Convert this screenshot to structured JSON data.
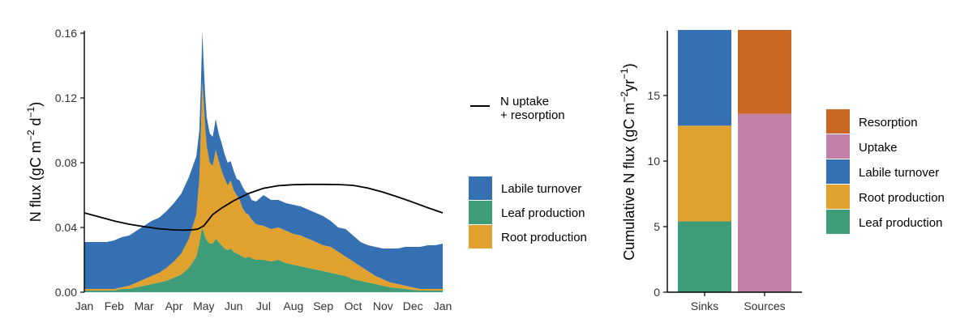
{
  "colors": {
    "labile": "#3571B2",
    "leaf": "#3F9C78",
    "root": "#E0A12F",
    "uptake": "#C27FA8",
    "resorption": "#C96722",
    "line": "#000000"
  },
  "chart_data": [
    {
      "type": "area",
      "stacked": true,
      "x_categories": [
        "Jan",
        "Feb",
        "Mar",
        "Apr",
        "May",
        "Jun",
        "Jul",
        "Aug",
        "Sep",
        "Oct",
        "Nov",
        "Dec",
        "Jan"
      ],
      "ylabel": "N flux (gC m",
      "ylabel_sup1": "−2",
      "ylabel_mid": " d",
      "ylabel_sup2": "−1",
      "ylabel_end": ")",
      "ylim": [
        0,
        0.16
      ],
      "yticks": [
        "0.00",
        "0.04",
        "0.08",
        "0.12",
        "0.16"
      ],
      "x_month": [
        0,
        0.25,
        0.5,
        0.75,
        1,
        1.25,
        1.5,
        1.75,
        2,
        2.25,
        2.5,
        2.75,
        3,
        3.25,
        3.5,
        3.75,
        3.85,
        3.9,
        3.95,
        4.0,
        4.05,
        4.1,
        4.2,
        4.3,
        4.4,
        4.5,
        4.6,
        4.7,
        4.8,
        4.9,
        5.0,
        5.1,
        5.2,
        5.3,
        5.4,
        5.5,
        5.6,
        5.75,
        6.0,
        6.25,
        6.5,
        6.75,
        7.0,
        7.25,
        7.5,
        7.75,
        8.0,
        8.25,
        8.5,
        8.75,
        9.0,
        9.25,
        9.5,
        9.75,
        10.0,
        10.25,
        10.5,
        10.75,
        11.0,
        11.25,
        11.5,
        11.75,
        12.0
      ],
      "series": [
        {
          "name": "Leaf production",
          "color_key": "leaf",
          "values": [
            0.001,
            0.001,
            0.001,
            0.001,
            0.001,
            0.002,
            0.002,
            0.003,
            0.004,
            0.005,
            0.006,
            0.007,
            0.009,
            0.011,
            0.015,
            0.022,
            0.03,
            0.036,
            0.04,
            0.037,
            0.034,
            0.032,
            0.03,
            0.03,
            0.033,
            0.031,
            0.029,
            0.027,
            0.026,
            0.027,
            0.025,
            0.024,
            0.023,
            0.022,
            0.021,
            0.022,
            0.021,
            0.02,
            0.02,
            0.019,
            0.02,
            0.018,
            0.017,
            0.016,
            0.015,
            0.014,
            0.013,
            0.012,
            0.011,
            0.01,
            0.008,
            0.007,
            0.006,
            0.005,
            0.004,
            0.003,
            0.0025,
            0.002,
            0.0015,
            0.001,
            0.001,
            0.001,
            0.001
          ]
        },
        {
          "name": "Root production",
          "color_key": "root",
          "values": [
            0.001,
            0.001,
            0.001,
            0.001,
            0.001,
            0.001,
            0.002,
            0.003,
            0.004,
            0.005,
            0.006,
            0.008,
            0.01,
            0.013,
            0.018,
            0.026,
            0.04,
            0.062,
            0.09,
            0.08,
            0.067,
            0.058,
            0.05,
            0.048,
            0.055,
            0.05,
            0.046,
            0.043,
            0.04,
            0.042,
            0.038,
            0.036,
            0.034,
            0.03,
            0.028,
            0.026,
            0.024,
            0.022,
            0.021,
            0.02,
            0.02,
            0.02,
            0.019,
            0.019,
            0.018,
            0.017,
            0.016,
            0.016,
            0.014,
            0.012,
            0.011,
            0.009,
            0.007,
            0.005,
            0.004,
            0.003,
            0.0025,
            0.002,
            0.0015,
            0.001,
            0.001,
            0.001,
            0.001
          ]
        },
        {
          "name": "Labile turnover",
          "color_key": "labile",
          "values": [
            0.029,
            0.029,
            0.029,
            0.029,
            0.03,
            0.031,
            0.031,
            0.032,
            0.033,
            0.034,
            0.034,
            0.035,
            0.036,
            0.037,
            0.038,
            0.036,
            0.03,
            0.028,
            0.031,
            0.023,
            0.02,
            0.018,
            0.018,
            0.018,
            0.019,
            0.017,
            0.017,
            0.015,
            0.014,
            0.012,
            0.012,
            0.01,
            0.012,
            0.013,
            0.013,
            0.013,
            0.012,
            0.014,
            0.019,
            0.018,
            0.017,
            0.017,
            0.018,
            0.018,
            0.018,
            0.018,
            0.018,
            0.016,
            0.015,
            0.017,
            0.016,
            0.015,
            0.016,
            0.018,
            0.019,
            0.021,
            0.022,
            0.024,
            0.025,
            0.026,
            0.027,
            0.027,
            0.028
          ]
        }
      ],
      "line": {
        "name": "N uptake\n+ resorption",
        "label_line1": "N uptake",
        "label_line2": "+ resorption",
        "x_month": [
          0,
          0.5,
          1,
          1.5,
          2,
          2.5,
          3,
          3.3,
          3.6,
          3.8,
          4.0,
          4.3,
          4.6,
          5.0,
          5.5,
          6.0,
          6.5,
          7.0,
          7.5,
          8.0,
          8.5,
          9.0,
          9.5,
          10.0,
          10.5,
          11.0,
          11.5,
          12.0
        ],
        "values": [
          0.049,
          0.0465,
          0.044,
          0.042,
          0.0405,
          0.0392,
          0.0385,
          0.0383,
          0.0385,
          0.039,
          0.041,
          0.048,
          0.052,
          0.0565,
          0.061,
          0.0642,
          0.0658,
          0.0664,
          0.0666,
          0.0666,
          0.0665,
          0.066,
          0.0643,
          0.0618,
          0.0588,
          0.0556,
          0.0522,
          0.049
        ]
      },
      "legend_order": [
        "Labile turnover",
        "Leaf production",
        "Root production"
      ],
      "legend_placement": "right"
    },
    {
      "type": "bar",
      "stacked": true,
      "categories": [
        "Sinks",
        "Sources"
      ],
      "ylabel": "Cumulative N flux (gC m",
      "ylabel_sup1": "−2",
      "ylabel_mid": "yr",
      "ylabel_sup2": "−1",
      "ylabel_end": ")",
      "ylim": [
        0,
        20
      ],
      "yticks": [
        "0",
        "5",
        "10",
        "15"
      ],
      "ytick_values": [
        0,
        5,
        10,
        15
      ],
      "series": [
        {
          "name": "Leaf production",
          "color_key": "leaf",
          "values": [
            5.4,
            0
          ]
        },
        {
          "name": "Root production",
          "color_key": "root",
          "values": [
            7.3,
            0
          ]
        },
        {
          "name": "Labile turnover",
          "color_key": "labile",
          "values": [
            7.3,
            0
          ]
        },
        {
          "name": "Uptake",
          "color_key": "uptake",
          "values": [
            0,
            13.6
          ]
        },
        {
          "name": "Resorption",
          "color_key": "resorption",
          "values": [
            0,
            6.4
          ]
        }
      ],
      "legend_order": [
        "Resorption",
        "Uptake",
        "Labile turnover",
        "Root production",
        "Leaf production"
      ],
      "legend_placement": "right"
    }
  ]
}
